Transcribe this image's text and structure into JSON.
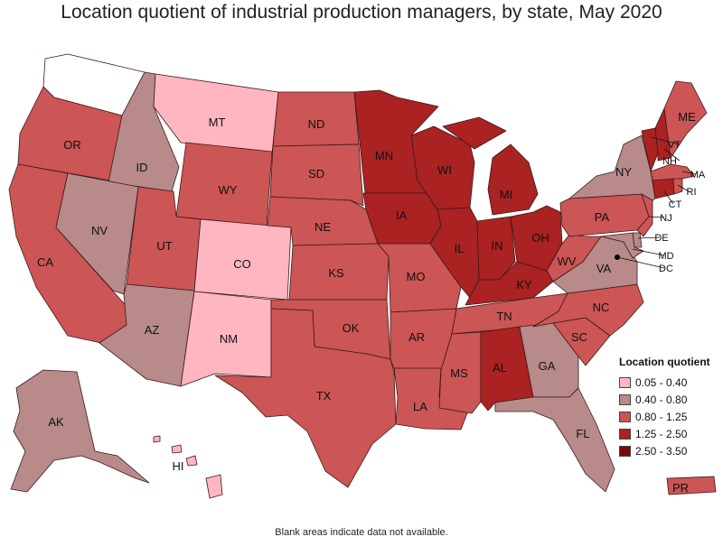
{
  "title": "Location quotient of industrial production managers, by state, May 2020",
  "footnote": "Blank areas indicate data not available.",
  "legend": {
    "title": "Location quotient",
    "items": [
      {
        "label": "0.05 - 0.40",
        "color": "#ffb6c1"
      },
      {
        "label": "0.40 - 0.80",
        "color": "#b88a8a"
      },
      {
        "label": "0.80 - 1.25",
        "color": "#cc5555"
      },
      {
        "label": "1.25 - 2.50",
        "color": "#aa2222"
      },
      {
        "label": "2.50 - 3.50",
        "color": "#7a0a0a"
      }
    ]
  },
  "no_data_color": "#ffffff",
  "states": {
    "WA": {
      "label": "",
      "bin": -1
    },
    "OR": {
      "label": "OR",
      "bin": 2
    },
    "CA": {
      "label": "CA",
      "bin": 2
    },
    "ID": {
      "label": "ID",
      "bin": 1
    },
    "NV": {
      "label": "NV",
      "bin": 1
    },
    "MT": {
      "label": "MT",
      "bin": 0
    },
    "WY": {
      "label": "WY",
      "bin": 2
    },
    "UT": {
      "label": "UT",
      "bin": 2
    },
    "AZ": {
      "label": "AZ",
      "bin": 1
    },
    "CO": {
      "label": "CO",
      "bin": 0
    },
    "NM": {
      "label": "NM",
      "bin": 0
    },
    "ND": {
      "label": "ND",
      "bin": 2
    },
    "SD": {
      "label": "SD",
      "bin": 2
    },
    "NE": {
      "label": "NE",
      "bin": 2
    },
    "KS": {
      "label": "KS",
      "bin": 2
    },
    "OK": {
      "label": "OK",
      "bin": 2
    },
    "TX": {
      "label": "TX",
      "bin": 2
    },
    "MN": {
      "label": "MN",
      "bin": 3
    },
    "IA": {
      "label": "IA",
      "bin": 3
    },
    "MO": {
      "label": "MO",
      "bin": 2
    },
    "AR": {
      "label": "AR",
      "bin": 2
    },
    "LA": {
      "label": "LA",
      "bin": 2
    },
    "WI": {
      "label": "WI",
      "bin": 3
    },
    "IL": {
      "label": "IL",
      "bin": 3
    },
    "MI": {
      "label": "MI",
      "bin": 3
    },
    "IN": {
      "label": "IN",
      "bin": 3
    },
    "OH": {
      "label": "OH",
      "bin": 3
    },
    "KY": {
      "label": "KY",
      "bin": 3
    },
    "TN": {
      "label": "TN",
      "bin": 2
    },
    "MS": {
      "label": "MS",
      "bin": 2
    },
    "AL": {
      "label": "AL",
      "bin": 3
    },
    "GA": {
      "label": "GA",
      "bin": 1
    },
    "FL": {
      "label": "FL",
      "bin": 1
    },
    "SC": {
      "label": "SC",
      "bin": 2
    },
    "NC": {
      "label": "NC",
      "bin": 2
    },
    "VA": {
      "label": "VA",
      "bin": 1
    },
    "WV": {
      "label": "WV",
      "bin": 2
    },
    "PA": {
      "label": "PA",
      "bin": 2
    },
    "NY": {
      "label": "NY",
      "bin": 1
    },
    "NJ": {
      "label": "NJ",
      "bin": 2
    },
    "DE": {
      "label": "DE",
      "bin": 1
    },
    "MD": {
      "label": "MD",
      "bin": 1
    },
    "DC": {
      "label": "DC",
      "bin": -1
    },
    "CT": {
      "label": "CT",
      "bin": 3
    },
    "RI": {
      "label": "RI",
      "bin": 2
    },
    "MA": {
      "label": "MA",
      "bin": 2
    },
    "VT": {
      "label": "VT",
      "bin": 3
    },
    "NH": {
      "label": "NH",
      "bin": 3
    },
    "ME": {
      "label": "ME",
      "bin": 2
    },
    "AK": {
      "label": "AK",
      "bin": 1
    },
    "HI": {
      "label": "HI",
      "bin": 0
    },
    "PR": {
      "label": "PR",
      "bin": 2
    }
  }
}
